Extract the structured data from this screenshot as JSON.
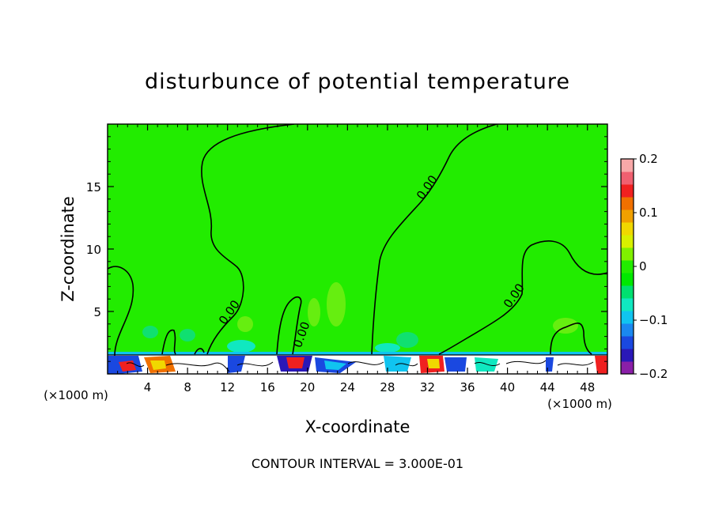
{
  "chart_data": {
    "type": "heatmap",
    "title": "disturbunce of potential temperature",
    "xlabel": "X-coordinate",
    "ylabel": "Z-coordinate",
    "x_unit": "(×1000 m)",
    "xlim": [
      0,
      50
    ],
    "ylim": [
      0,
      20
    ],
    "x_ticks": [
      4,
      8,
      12,
      16,
      20,
      24,
      28,
      32,
      36,
      40,
      44,
      48
    ],
    "y_ticks": [
      5,
      10,
      15
    ],
    "colorbar": {
      "range": [
        -0.2,
        0.2
      ],
      "tick_values": [
        0.2,
        0.1,
        0,
        -0.1,
        -0.2
      ],
      "tick_labels": [
        "0.2",
        "0.1",
        "0",
        "−0.1",
        "−0.2"
      ],
      "colors": [
        "#8a1fa8",
        "#2a18b8",
        "#1a48e0",
        "#1a88f0",
        "#10c4f0",
        "#10e8c0",
        "#00e070",
        "#00e800",
        "#22ec00",
        "#80f000",
        "#d8f000",
        "#f0d800",
        "#f0a000",
        "#f07000",
        "#f02020",
        "#f06070",
        "#f8a8a8"
      ]
    },
    "contour_label": "0.00",
    "background_value_color": "#22ec00",
    "footnote": "CONTOUR INTERVAL = 3.000E-01"
  }
}
